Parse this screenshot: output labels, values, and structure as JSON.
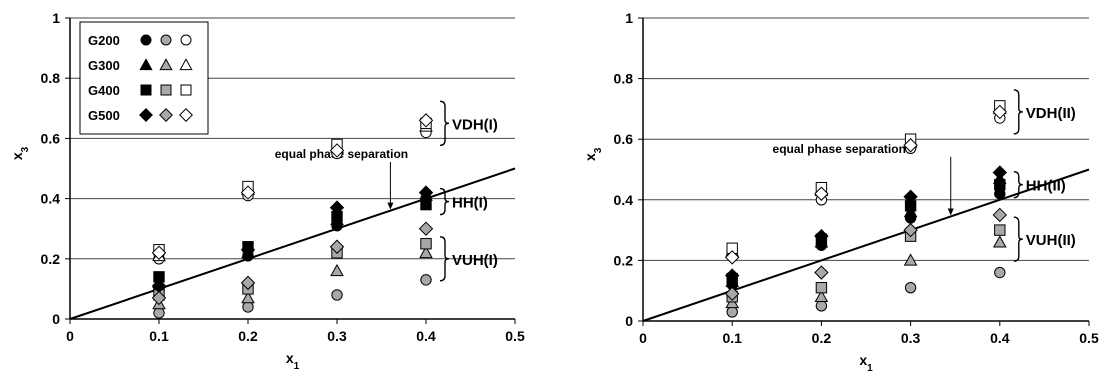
{
  "legend": {
    "series": [
      "G200",
      "G300",
      "G400",
      "G500"
    ],
    "styles": [
      "filled",
      "shaded",
      "open"
    ]
  },
  "colors": {
    "shaded": "#a8a8a8",
    "grid": "#444444",
    "axis": "#000000"
  },
  "chart_data": [
    {
      "type": "scatter",
      "xlabel": "x1",
      "ylabel": "x3",
      "xlim": [
        0,
        0.5
      ],
      "ylim": [
        0,
        1
      ],
      "xticks": [
        "0",
        "0.1",
        "0.2",
        "0.3",
        "0.4",
        "0.5"
      ],
      "yticks": [
        "0",
        "0.2",
        "0.4",
        "0.6",
        "0.8",
        "1"
      ],
      "grid": "horizontal",
      "legend_position": "top-left",
      "line": {
        "label": "equal phase separation",
        "from": [
          0,
          0
        ],
        "to": [
          0.5,
          0.5
        ]
      },
      "regions": [
        {
          "label": "VDH(I)",
          "y": 0.65
        },
        {
          "label": "HH(I)",
          "y": 0.39
        },
        {
          "label": "VUH(I)",
          "y": 0.2
        }
      ],
      "series": [
        {
          "name": "G200",
          "style": "filled",
          "shape": "circle",
          "points": [
            [
              0.1,
              0.1
            ],
            [
              0.2,
              0.21
            ],
            [
              0.3,
              0.31
            ],
            [
              0.4,
              0.4
            ]
          ]
        },
        {
          "name": "G200",
          "style": "shaded",
          "shape": "circle",
          "points": [
            [
              0.1,
              0.02
            ],
            [
              0.2,
              0.04
            ],
            [
              0.3,
              0.08
            ],
            [
              0.4,
              0.13
            ]
          ]
        },
        {
          "name": "G200",
          "style": "open",
          "shape": "circle",
          "points": [
            [
              0.1,
              0.2
            ],
            [
              0.2,
              0.41
            ],
            [
              0.3,
              0.55
            ],
            [
              0.4,
              0.62
            ]
          ]
        },
        {
          "name": "G300",
          "style": "filled",
          "shape": "triangle",
          "points": [
            [
              0.1,
              0.12
            ],
            [
              0.2,
              0.22
            ],
            [
              0.3,
              0.33
            ],
            [
              0.4,
              0.41
            ]
          ]
        },
        {
          "name": "G300",
          "style": "shaded",
          "shape": "triangle",
          "points": [
            [
              0.1,
              0.05
            ],
            [
              0.2,
              0.07
            ],
            [
              0.3,
              0.16
            ],
            [
              0.4,
              0.22
            ]
          ]
        },
        {
          "name": "G300",
          "style": "open",
          "shape": "triangle",
          "points": [
            [
              0.1,
              0.21
            ],
            [
              0.2,
              0.43
            ],
            [
              0.3,
              0.57
            ],
            [
              0.4,
              0.64
            ]
          ]
        },
        {
          "name": "G400",
          "style": "filled",
          "shape": "square",
          "points": [
            [
              0.1,
              0.14
            ],
            [
              0.2,
              0.24
            ],
            [
              0.3,
              0.34
            ],
            [
              0.4,
              0.38
            ]
          ]
        },
        {
          "name": "G400",
          "style": "shaded",
          "shape": "square",
          "points": [
            [
              0.1,
              0.08
            ],
            [
              0.2,
              0.1
            ],
            [
              0.3,
              0.22
            ],
            [
              0.4,
              0.25
            ]
          ]
        },
        {
          "name": "G400",
          "style": "open",
          "shape": "square",
          "points": [
            [
              0.1,
              0.23
            ],
            [
              0.2,
              0.44
            ],
            [
              0.3,
              0.58
            ],
            [
              0.4,
              0.65
            ]
          ]
        },
        {
          "name": "G500",
          "style": "filled",
          "shape": "diamond",
          "points": [
            [
              0.1,
              0.11
            ],
            [
              0.2,
              0.23
            ],
            [
              0.3,
              0.37
            ],
            [
              0.4,
              0.42
            ]
          ]
        },
        {
          "name": "G500",
          "style": "shaded",
          "shape": "diamond",
          "points": [
            [
              0.1,
              0.07
            ],
            [
              0.2,
              0.12
            ],
            [
              0.3,
              0.24
            ],
            [
              0.4,
              0.3
            ]
          ]
        },
        {
          "name": "G500",
          "style": "open",
          "shape": "diamond",
          "points": [
            [
              0.1,
              0.22
            ],
            [
              0.2,
              0.42
            ],
            [
              0.3,
              0.56
            ],
            [
              0.4,
              0.66
            ]
          ]
        }
      ]
    },
    {
      "type": "scatter",
      "xlabel": "x1",
      "ylabel": "x3",
      "xlim": [
        0,
        0.5
      ],
      "ylim": [
        0,
        1
      ],
      "xticks": [
        "0",
        "0.1",
        "0.2",
        "0.3",
        "0.4",
        "0.5"
      ],
      "yticks": [
        "0",
        "0.2",
        "0.4",
        "0.6",
        "0.8",
        "1"
      ],
      "grid": "horizontal",
      "line": {
        "label": "equal phase separation",
        "from": [
          0,
          0
        ],
        "to": [
          0.5,
          0.5
        ]
      },
      "regions": [
        {
          "label": "VDH(II)",
          "y": 0.69
        },
        {
          "label": "HH(II)",
          "y": 0.45
        },
        {
          "label": "VUH(II)",
          "y": 0.27
        }
      ],
      "series": [
        {
          "name": "G200",
          "style": "filled",
          "shape": "circle",
          "points": [
            [
              0.1,
              0.12
            ],
            [
              0.2,
              0.25
            ],
            [
              0.3,
              0.34
            ],
            [
              0.4,
              0.42
            ]
          ]
        },
        {
          "name": "G200",
          "style": "shaded",
          "shape": "circle",
          "points": [
            [
              0.1,
              0.03
            ],
            [
              0.2,
              0.05
            ],
            [
              0.3,
              0.11
            ],
            [
              0.4,
              0.16
            ]
          ]
        },
        {
          "name": "G200",
          "style": "open",
          "shape": "circle",
          "points": [
            [
              0.1,
              0.22
            ],
            [
              0.2,
              0.4
            ],
            [
              0.3,
              0.57
            ],
            [
              0.4,
              0.67
            ]
          ]
        },
        {
          "name": "G300",
          "style": "filled",
          "shape": "triangle",
          "points": [
            [
              0.1,
              0.13
            ],
            [
              0.2,
              0.26
            ],
            [
              0.3,
              0.36
            ],
            [
              0.4,
              0.47
            ]
          ]
        },
        {
          "name": "G300",
          "style": "shaded",
          "shape": "triangle",
          "points": [
            [
              0.1,
              0.06
            ],
            [
              0.2,
              0.08
            ],
            [
              0.3,
              0.2
            ],
            [
              0.4,
              0.26
            ]
          ]
        },
        {
          "name": "G300",
          "style": "open",
          "shape": "triangle",
          "points": [
            [
              0.1,
              0.23
            ],
            [
              0.2,
              0.43
            ],
            [
              0.3,
              0.59
            ],
            [
              0.4,
              0.7
            ]
          ]
        },
        {
          "name": "G400",
          "style": "filled",
          "shape": "square",
          "points": [
            [
              0.1,
              0.14
            ],
            [
              0.2,
              0.27
            ],
            [
              0.3,
              0.38
            ],
            [
              0.4,
              0.45
            ]
          ]
        },
        {
          "name": "G400",
          "style": "shaded",
          "shape": "square",
          "points": [
            [
              0.1,
              0.08
            ],
            [
              0.2,
              0.11
            ],
            [
              0.3,
              0.28
            ],
            [
              0.4,
              0.3
            ]
          ]
        },
        {
          "name": "G400",
          "style": "open",
          "shape": "square",
          "points": [
            [
              0.1,
              0.24
            ],
            [
              0.2,
              0.44
            ],
            [
              0.3,
              0.6
            ],
            [
              0.4,
              0.71
            ]
          ]
        },
        {
          "name": "G500",
          "style": "filled",
          "shape": "diamond",
          "points": [
            [
              0.1,
              0.15
            ],
            [
              0.2,
              0.28
            ],
            [
              0.3,
              0.41
            ],
            [
              0.4,
              0.49
            ]
          ]
        },
        {
          "name": "G500",
          "style": "shaded",
          "shape": "diamond",
          "points": [
            [
              0.1,
              0.09
            ],
            [
              0.2,
              0.16
            ],
            [
              0.3,
              0.3
            ],
            [
              0.4,
              0.35
            ]
          ]
        },
        {
          "name": "G500",
          "style": "open",
          "shape": "diamond",
          "points": [
            [
              0.1,
              0.21
            ],
            [
              0.2,
              0.42
            ],
            [
              0.3,
              0.58
            ],
            [
              0.4,
              0.69
            ]
          ]
        }
      ]
    }
  ]
}
